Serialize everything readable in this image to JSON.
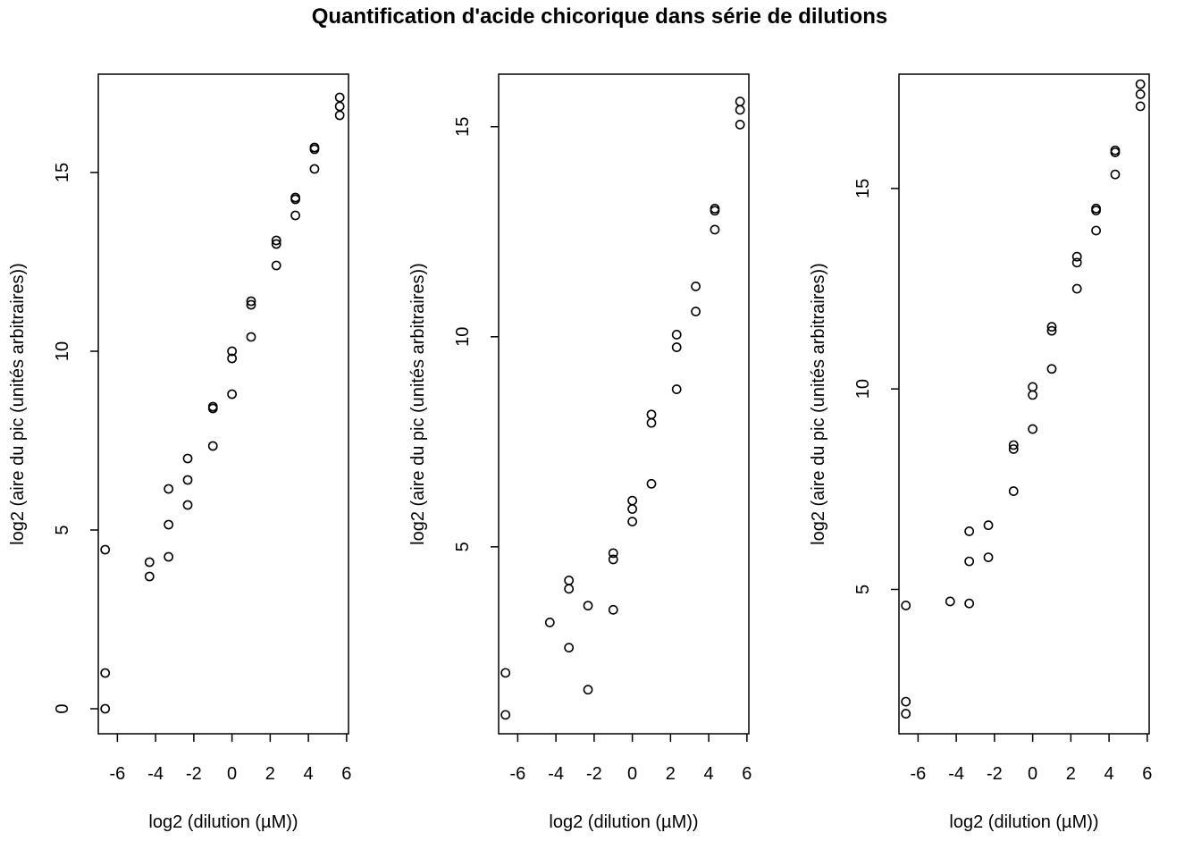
{
  "figure": {
    "title": "Quantification d'acide chicorique dans série de dilutions"
  },
  "chart_data": [
    {
      "type": "scatter",
      "title": "",
      "xlabel": "log2 (dilution (µM))",
      "ylabel": "log2 (aire du pic (unités arbitraires))",
      "xlim": [
        -7,
        6.1
      ],
      "ylim": [
        -0.7,
        17.75
      ],
      "xticks": [
        -6,
        -4,
        -2,
        0,
        2,
        4,
        6
      ],
      "yticks": [
        0,
        5,
        10,
        15
      ],
      "points": [
        [
          -6.64,
          4.45
        ],
        [
          -6.64,
          1.0
        ],
        [
          -6.64,
          0.0
        ],
        [
          -4.32,
          4.1
        ],
        [
          -4.32,
          3.7
        ],
        [
          -3.32,
          6.15
        ],
        [
          -3.32,
          5.15
        ],
        [
          -3.32,
          4.25
        ],
        [
          -2.32,
          7.0
        ],
        [
          -2.32,
          6.4
        ],
        [
          -2.32,
          5.7
        ],
        [
          -1.0,
          8.45
        ],
        [
          -1.0,
          8.4
        ],
        [
          -1.0,
          7.35
        ],
        [
          0.0,
          10.0
        ],
        [
          0.0,
          9.8
        ],
        [
          0.0,
          8.8
        ],
        [
          1.0,
          11.4
        ],
        [
          1.0,
          11.3
        ],
        [
          1.0,
          10.4
        ],
        [
          2.32,
          13.1
        ],
        [
          2.32,
          13.0
        ],
        [
          2.32,
          12.4
        ],
        [
          3.32,
          14.3
        ],
        [
          3.32,
          14.25
        ],
        [
          3.32,
          13.8
        ],
        [
          4.32,
          15.7
        ],
        [
          4.32,
          15.65
        ],
        [
          4.32,
          15.1
        ],
        [
          5.64,
          17.1
        ],
        [
          5.64,
          16.85
        ],
        [
          5.64,
          16.6
        ]
      ]
    },
    {
      "type": "scatter",
      "title": "",
      "xlabel": "log2 (dilution (µM))",
      "ylabel": "log2 (aire du pic (unités arbitraires))",
      "xlim": [
        -7,
        6.1
      ],
      "ylim": [
        0.55,
        16.25
      ],
      "xticks": [
        -6,
        -4,
        -2,
        0,
        2,
        4,
        6
      ],
      "yticks": [
        5,
        10,
        15
      ],
      "points": [
        [
          -6.64,
          2.0
        ],
        [
          -6.64,
          1.0
        ],
        [
          -4.32,
          3.2
        ],
        [
          -3.32,
          4.2
        ],
        [
          -3.32,
          4.0
        ],
        [
          -3.32,
          2.6
        ],
        [
          -2.32,
          3.6
        ],
        [
          -2.32,
          1.6
        ],
        [
          -1.0,
          4.85
        ],
        [
          -1.0,
          4.7
        ],
        [
          -1.0,
          3.5
        ],
        [
          0.0,
          6.1
        ],
        [
          0.0,
          5.9
        ],
        [
          0.0,
          5.6
        ],
        [
          1.0,
          8.15
        ],
        [
          1.0,
          7.95
        ],
        [
          1.0,
          6.5
        ],
        [
          2.32,
          10.05
        ],
        [
          2.32,
          9.75
        ],
        [
          2.32,
          8.75
        ],
        [
          3.32,
          11.2
        ],
        [
          3.32,
          10.6
        ],
        [
          4.32,
          13.05
        ],
        [
          4.32,
          13.0
        ],
        [
          4.32,
          12.55
        ],
        [
          5.64,
          15.6
        ],
        [
          5.64,
          15.4
        ],
        [
          5.64,
          15.05
        ]
      ]
    },
    {
      "type": "scatter",
      "title": "",
      "xlabel": "log2 (dilution (µM))",
      "ylabel": "log2 (aire du pic (unités arbitraires))",
      "xlim": [
        -7,
        6.1
      ],
      "ylim": [
        1.4,
        17.85
      ],
      "xticks": [
        -6,
        -4,
        -2,
        0,
        2,
        4,
        6
      ],
      "yticks": [
        5,
        10,
        15
      ],
      "points": [
        [
          -6.64,
          4.6
        ],
        [
          -6.64,
          2.2
        ],
        [
          -6.64,
          1.9
        ],
        [
          -4.32,
          4.7
        ],
        [
          -3.32,
          6.45
        ],
        [
          -3.32,
          5.7
        ],
        [
          -3.32,
          4.65
        ],
        [
          -2.32,
          6.6
        ],
        [
          -2.32,
          5.8
        ],
        [
          -1.0,
          8.6
        ],
        [
          -1.0,
          8.5
        ],
        [
          -1.0,
          7.45
        ],
        [
          0.0,
          10.05
        ],
        [
          0.0,
          9.85
        ],
        [
          0.0,
          9.0
        ],
        [
          1.0,
          11.55
        ],
        [
          1.0,
          11.45
        ],
        [
          1.0,
          10.5
        ],
        [
          2.32,
          13.3
        ],
        [
          2.32,
          13.15
        ],
        [
          2.32,
          12.5
        ],
        [
          3.32,
          14.5
        ],
        [
          3.32,
          14.45
        ],
        [
          3.32,
          13.95
        ],
        [
          4.32,
          15.95
        ],
        [
          4.32,
          15.9
        ],
        [
          4.32,
          15.35
        ],
        [
          5.64,
          17.6
        ],
        [
          5.64,
          17.35
        ],
        [
          5.64,
          17.05
        ]
      ]
    }
  ]
}
